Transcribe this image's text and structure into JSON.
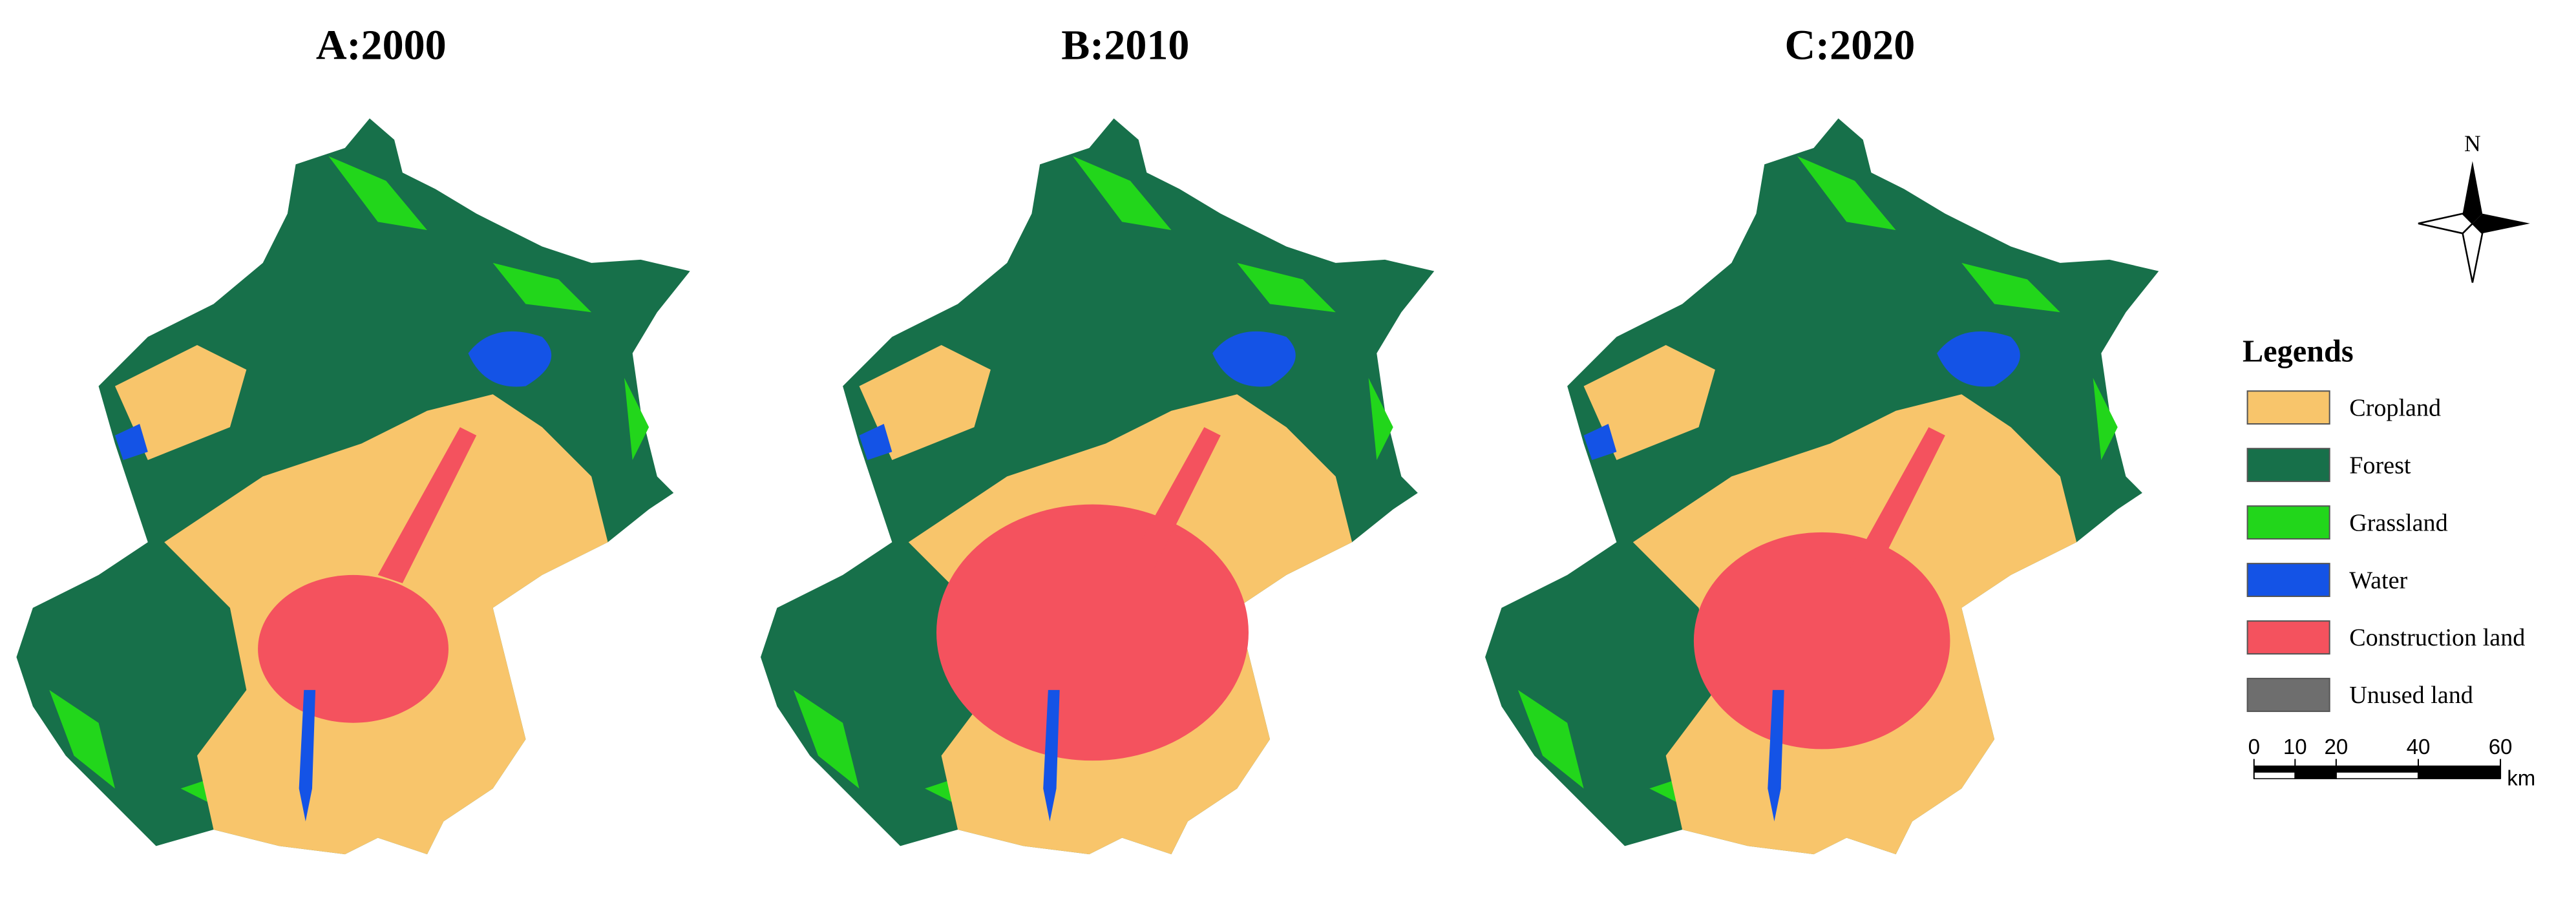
{
  "panels": [
    {
      "title": "A:2000"
    },
    {
      "title": "B:2010"
    },
    {
      "title": "C:2020"
    }
  ],
  "north": "N",
  "legend": {
    "title": "Legends",
    "items": [
      {
        "label": "Cropland",
        "color": "#f8c56b"
      },
      {
        "label": "Forest",
        "color": "#17704a"
      },
      {
        "label": "Grassland",
        "color": "#22d61b"
      },
      {
        "label": "Water",
        "color": "#1453e6"
      },
      {
        "label": "Construction land",
        "color": "#f4525e"
      },
      {
        "label": "Unused land",
        "color": "#6e6e6e"
      }
    ]
  },
  "scale_bar": {
    "ticks": [
      0,
      10,
      20,
      40,
      60
    ],
    "unit": "km"
  }
}
